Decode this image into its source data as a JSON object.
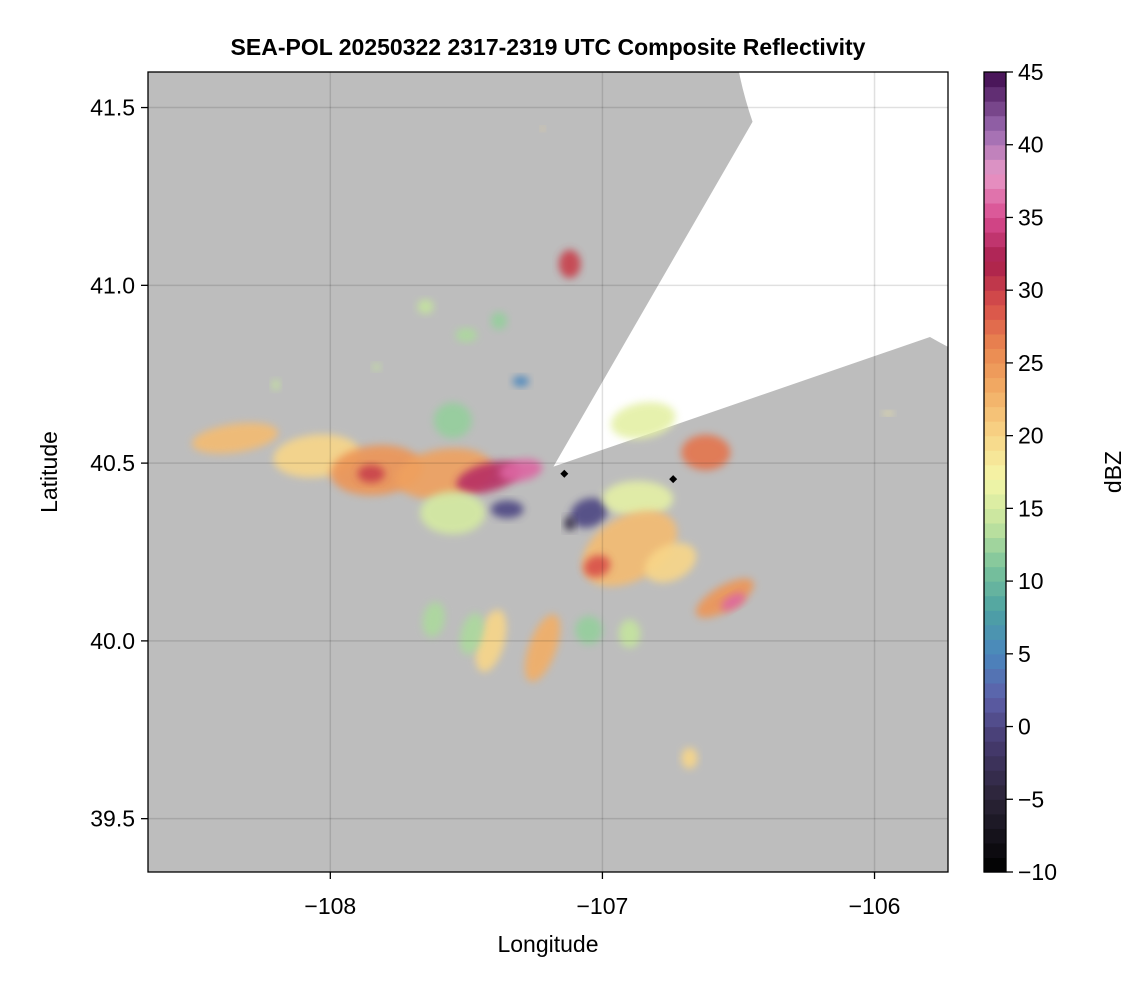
{
  "chart_data": {
    "type": "heatmap",
    "title": "SEA-POL 20250322 2317-2319 UTC Composite Reflectivity",
    "xlabel": "Longitude",
    "ylabel": "Latitude",
    "xlim": [
      -108.67,
      -105.73
    ],
    "ylim": [
      39.35,
      41.6
    ],
    "x_ticks": [
      -108,
      -107,
      -106
    ],
    "x_tick_labels": [
      "−108",
      "−107",
      "−106"
    ],
    "y_ticks": [
      39.5,
      40.0,
      40.5,
      41.0,
      41.5
    ],
    "y_tick_labels": [
      "39.5",
      "40.0",
      "40.5",
      "41.0",
      "41.5"
    ],
    "grid": true,
    "background_color": "#bdbdbd",
    "coverage_color": "#ffffff",
    "radar_center": {
      "lon": -107.18,
      "lat": 40.49
    },
    "radar_range_deg_lat": 1.12,
    "blocked_sector_deg": [
      19,
      60
    ],
    "markers": [
      {
        "lon": -107.14,
        "lat": 40.47,
        "shape": "diamond",
        "color": "#000000"
      },
      {
        "lon": -106.74,
        "lat": 40.455,
        "shape": "diamond",
        "color": "#000000"
      }
    ],
    "colorbar": {
      "label": "dBZ",
      "min": -10,
      "max": 45,
      "ticks": [
        -10,
        -5,
        0,
        5,
        10,
        15,
        20,
        25,
        30,
        35,
        40,
        45
      ],
      "tick_labels": [
        "−10",
        "−5",
        "0",
        "5",
        "10",
        "15",
        "20",
        "25",
        "30",
        "35",
        "40",
        "45"
      ],
      "stops": [
        {
          "v": -10,
          "c": "#000000"
        },
        {
          "v": -5,
          "c": "#2a2336"
        },
        {
          "v": -1,
          "c": "#463b70"
        },
        {
          "v": 2,
          "c": "#5d5fa8"
        },
        {
          "v": 5,
          "c": "#4a86bd"
        },
        {
          "v": 8,
          "c": "#4da2a2"
        },
        {
          "v": 11,
          "c": "#7cc49b"
        },
        {
          "v": 14,
          "c": "#c4e49e"
        },
        {
          "v": 17,
          "c": "#f4f6a8"
        },
        {
          "v": 20,
          "c": "#f8d688"
        },
        {
          "v": 23,
          "c": "#f2ae66"
        },
        {
          "v": 26,
          "c": "#ea8850"
        },
        {
          "v": 29,
          "c": "#d8504a"
        },
        {
          "v": 32,
          "c": "#a81e4c"
        },
        {
          "v": 35,
          "c": "#d84c90"
        },
        {
          "v": 38,
          "c": "#e89ac8"
        },
        {
          "v": 41,
          "c": "#9a6ab0"
        },
        {
          "v": 45,
          "c": "#3e0a4e"
        }
      ]
    },
    "echo_cells": [
      {
        "lon": -108.35,
        "lat": 40.57,
        "rx": 0.16,
        "ry": 0.04,
        "ang": -8,
        "dbz": 22
      },
      {
        "lon": -108.05,
        "lat": 40.52,
        "rx": 0.16,
        "ry": 0.06,
        "ang": -5,
        "dbz": 20
      },
      {
        "lon": -107.83,
        "lat": 40.48,
        "rx": 0.17,
        "ry": 0.07,
        "ang": -5,
        "dbz": 25
      },
      {
        "lon": -107.85,
        "lat": 40.47,
        "rx": 0.05,
        "ry": 0.025,
        "ang": 0,
        "dbz": 30
      },
      {
        "lon": -107.58,
        "lat": 40.47,
        "rx": 0.18,
        "ry": 0.07,
        "ang": -8,
        "dbz": 24
      },
      {
        "lon": -107.42,
        "lat": 40.46,
        "rx": 0.12,
        "ry": 0.04,
        "ang": -15,
        "dbz": 33
      },
      {
        "lon": -107.3,
        "lat": 40.48,
        "rx": 0.08,
        "ry": 0.03,
        "ang": -10,
        "dbz": 36
      },
      {
        "lon": -107.55,
        "lat": 40.36,
        "rx": 0.12,
        "ry": 0.06,
        "ang": 0,
        "dbz": 15
      },
      {
        "lon": -107.35,
        "lat": 40.37,
        "rx": 0.06,
        "ry": 0.025,
        "ang": 0,
        "dbz": 0
      },
      {
        "lon": -107.55,
        "lat": 40.62,
        "rx": 0.07,
        "ry": 0.05,
        "ang": 0,
        "dbz": 12
      },
      {
        "lon": -107.05,
        "lat": 40.36,
        "rx": 0.07,
        "ry": 0.04,
        "ang": -20,
        "dbz": 0
      },
      {
        "lon": -107.12,
        "lat": 40.33,
        "rx": 0.02,
        "ry": 0.02,
        "ang": 0,
        "dbz": -4
      },
      {
        "lon": -106.87,
        "lat": 40.4,
        "rx": 0.13,
        "ry": 0.05,
        "ang": 0,
        "dbz": 16
      },
      {
        "lon": -106.9,
        "lat": 40.26,
        "rx": 0.19,
        "ry": 0.09,
        "ang": -30,
        "dbz": 22
      },
      {
        "lon": -107.02,
        "lat": 40.21,
        "rx": 0.05,
        "ry": 0.03,
        "ang": -20,
        "dbz": 29
      },
      {
        "lon": -106.75,
        "lat": 40.22,
        "rx": 0.1,
        "ry": 0.05,
        "ang": -25,
        "dbz": 20
      },
      {
        "lon": -106.55,
        "lat": 40.12,
        "rx": 0.12,
        "ry": 0.035,
        "ang": -30,
        "dbz": 25
      },
      {
        "lon": -106.52,
        "lat": 40.11,
        "rx": 0.05,
        "ry": 0.018,
        "ang": -30,
        "dbz": 36
      },
      {
        "lon": -106.62,
        "lat": 40.53,
        "rx": 0.09,
        "ry": 0.05,
        "ang": 0,
        "dbz": 27
      },
      {
        "lon": -106.85,
        "lat": 40.62,
        "rx": 0.12,
        "ry": 0.05,
        "ang": -10,
        "dbz": 16
      },
      {
        "lon": -107.41,
        "lat": 40.0,
        "rx": 0.05,
        "ry": 0.09,
        "ang": 15,
        "dbz": 20
      },
      {
        "lon": -107.48,
        "lat": 40.02,
        "rx": 0.04,
        "ry": 0.06,
        "ang": 15,
        "dbz": 13
      },
      {
        "lon": -107.22,
        "lat": 39.98,
        "rx": 0.05,
        "ry": 0.1,
        "ang": 20,
        "dbz": 23
      },
      {
        "lon": -107.62,
        "lat": 40.06,
        "rx": 0.04,
        "ry": 0.05,
        "ang": 10,
        "dbz": 13
      },
      {
        "lon": -107.05,
        "lat": 40.03,
        "rx": 0.05,
        "ry": 0.04,
        "ang": 0,
        "dbz": 12
      },
      {
        "lon": -106.9,
        "lat": 40.02,
        "rx": 0.04,
        "ry": 0.04,
        "ang": 0,
        "dbz": 14
      },
      {
        "lon": -107.12,
        "lat": 41.06,
        "rx": 0.04,
        "ry": 0.04,
        "ang": 0,
        "dbz": 30
      },
      {
        "lon": -106.68,
        "lat": 39.67,
        "rx": 0.03,
        "ry": 0.03,
        "ang": 0,
        "dbz": 20
      },
      {
        "lon": -107.38,
        "lat": 40.9,
        "rx": 0.03,
        "ry": 0.025,
        "ang": 0,
        "dbz": 12
      },
      {
        "lon": -107.5,
        "lat": 40.86,
        "rx": 0.04,
        "ry": 0.02,
        "ang": 0,
        "dbz": 13
      },
      {
        "lon": -107.65,
        "lat": 40.94,
        "rx": 0.03,
        "ry": 0.02,
        "ang": 0,
        "dbz": 14
      },
      {
        "lon": -107.3,
        "lat": 40.73,
        "rx": 0.03,
        "ry": 0.015,
        "ang": 0,
        "dbz": 5
      },
      {
        "lon": -107.83,
        "lat": 40.77,
        "rx": 0.015,
        "ry": 0.01,
        "ang": 0,
        "dbz": 14
      },
      {
        "lon": -108.2,
        "lat": 40.72,
        "rx": 0.015,
        "ry": 0.015,
        "ang": 0,
        "dbz": 14
      },
      {
        "lon": -105.95,
        "lat": 40.64,
        "rx": 0.02,
        "ry": 0.006,
        "ang": 0,
        "dbz": 18
      },
      {
        "lon": -107.22,
        "lat": 41.44,
        "rx": 0.008,
        "ry": 0.006,
        "ang": 0,
        "dbz": 20
      }
    ]
  }
}
